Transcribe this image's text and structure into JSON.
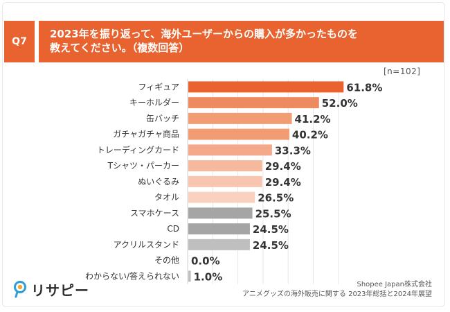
{
  "header": {
    "question_no": "Q7",
    "title_line1": "2023年を振り返って、海外ユーザーからの購入が多かったものを",
    "title_line2": "教えてください。（複数回答）"
  },
  "sample_label": "[n=102]",
  "chart_data": {
    "type": "bar",
    "orientation": "horizontal",
    "categories": [
      "フィギュア",
      "キーホルダー",
      "缶バッチ",
      "ガチャガチャ商品",
      "トレーディングカード",
      "Tシャツ・パーカー",
      "ぬいぐるみ",
      "タオル",
      "スマホケース",
      "CD",
      "アクリルスタンド",
      "その他",
      "わからない/答えられない"
    ],
    "values": [
      61.8,
      52.0,
      41.2,
      40.2,
      33.3,
      29.4,
      29.4,
      26.5,
      25.5,
      24.5,
      24.5,
      0.0,
      1.0
    ],
    "value_labels": [
      "61.8%",
      "52.0%",
      "41.2%",
      "40.2%",
      "33.3%",
      "29.4%",
      "29.4%",
      "26.5%",
      "25.5%",
      "24.5%",
      "24.5%",
      "0.0%",
      "1.0%"
    ],
    "colors": [
      "#e8632f",
      "#ee8a5f",
      "#f29c74",
      "#f29c74",
      "#f4a98a",
      "#f7b99e",
      "#f8c6b0",
      "#f9d1bf",
      "#a5a5a5",
      "#a5a5a5",
      "#bfbfbf",
      "#bfbfbf",
      "#bfbfbf"
    ],
    "xlim": [
      0,
      70
    ],
    "grid": true
  },
  "logo": {
    "text": "リサピー",
    "icon": "magnifier-icon"
  },
  "source": {
    "line1": "Shopee Japan株式会社",
    "line2": "アニメグッズの海外販売に関する 2023年総括と2024年展望"
  }
}
